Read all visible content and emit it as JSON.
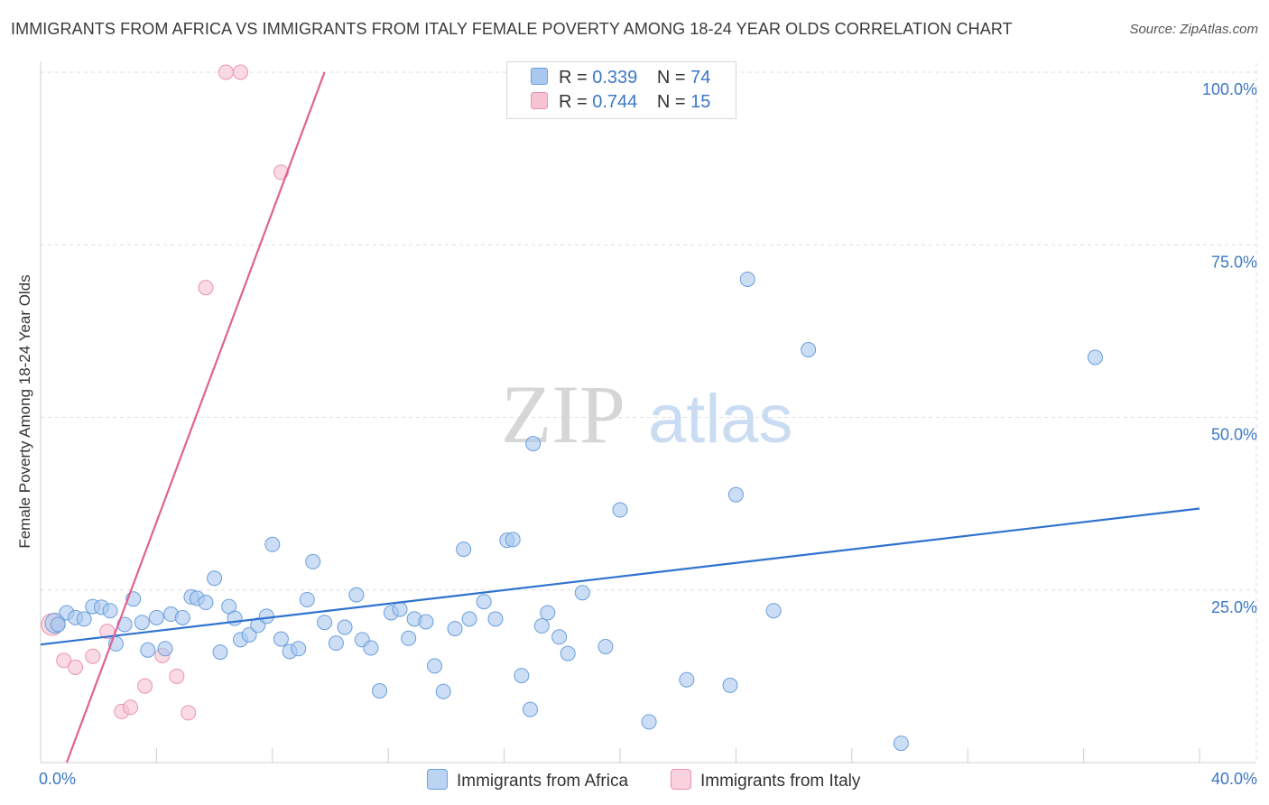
{
  "title": "IMMIGRANTS FROM AFRICA VS IMMIGRANTS FROM ITALY FEMALE POVERTY AMONG 18-24 YEAR OLDS CORRELATION CHART",
  "source": "Source: ZipAtlas.com",
  "watermark": {
    "zip": "ZIP",
    "atlas": "atlas"
  },
  "legend": {
    "africa": {
      "r_label": "R =",
      "r_value": "0.339",
      "n_label": "N =",
      "n_value": "74"
    },
    "italy": {
      "r_label": "R =",
      "r_value": "0.744",
      "n_label": "N =",
      "n_value": "15"
    }
  },
  "colors": {
    "africa_fill": "#a9c8ef",
    "africa_stroke": "#6a9fdc",
    "africa_line": "#2f72cf",
    "italy_fill": "#f7c3d3",
    "italy_stroke": "#ea93b0",
    "italy_line": "#e0628f",
    "axis_text": "#3b78c7",
    "grid": "#dedede"
  },
  "chart_data": {
    "type": "scatter",
    "title": "IMMIGRANTS FROM AFRICA VS IMMIGRANTS FROM ITALY FEMALE POVERTY AMONG 18-24 YEAR OLDS CORRELATION CHART",
    "xlabel": "",
    "ylabel": "Female Poverty Among 18-24 Year Olds",
    "xlim": [
      0,
      40
    ],
    "ylim": [
      0,
      100
    ],
    "x_tick_labels": [
      "0.0%",
      "40.0%"
    ],
    "y_tick_values": [
      25,
      50,
      75,
      100
    ],
    "y_tick_labels": [
      "25.0%",
      "50.0%",
      "75.0%",
      "100.0%"
    ],
    "legend_position": "top-center",
    "series": [
      {
        "name": "Immigrants from Africa",
        "R": 0.339,
        "N": 74,
        "trend": {
          "x": [
            0,
            40
          ],
          "y": [
            17.1,
            36.8
          ]
        },
        "points": [
          [
            0.5,
            20.2
          ],
          [
            0.6,
            20.0
          ],
          [
            0.9,
            21.7
          ],
          [
            1.2,
            21.0
          ],
          [
            1.5,
            20.8
          ],
          [
            1.8,
            22.6
          ],
          [
            2.1,
            22.5
          ],
          [
            2.4,
            22.0
          ],
          [
            2.6,
            17.2
          ],
          [
            2.9,
            20.0
          ],
          [
            3.2,
            23.7
          ],
          [
            3.5,
            20.3
          ],
          [
            3.7,
            16.3
          ],
          [
            4.0,
            21.0
          ],
          [
            4.3,
            16.5
          ],
          [
            4.5,
            21.5
          ],
          [
            4.9,
            21.0
          ],
          [
            5.2,
            24.0
          ],
          [
            5.4,
            23.8
          ],
          [
            5.7,
            23.2
          ],
          [
            6.0,
            26.7
          ],
          [
            6.2,
            16.0
          ],
          [
            6.5,
            22.6
          ],
          [
            6.7,
            20.9
          ],
          [
            6.9,
            17.8
          ],
          [
            7.2,
            18.5
          ],
          [
            7.5,
            19.9
          ],
          [
            7.8,
            21.2
          ],
          [
            8.0,
            31.6
          ],
          [
            8.3,
            17.9
          ],
          [
            8.6,
            16.1
          ],
          [
            8.9,
            16.5
          ],
          [
            9.2,
            23.6
          ],
          [
            9.4,
            29.1
          ],
          [
            9.8,
            20.3
          ],
          [
            10.2,
            17.3
          ],
          [
            10.5,
            19.6
          ],
          [
            10.9,
            24.3
          ],
          [
            11.1,
            17.8
          ],
          [
            11.4,
            16.6
          ],
          [
            11.7,
            10.4
          ],
          [
            12.1,
            21.7
          ],
          [
            12.4,
            22.2
          ],
          [
            12.7,
            18.0
          ],
          [
            12.9,
            20.8
          ],
          [
            13.3,
            20.4
          ],
          [
            13.6,
            14.0
          ],
          [
            13.9,
            10.3
          ],
          [
            14.3,
            19.4
          ],
          [
            14.6,
            30.9
          ],
          [
            14.8,
            20.8
          ],
          [
            15.3,
            23.3
          ],
          [
            15.7,
            20.8
          ],
          [
            16.1,
            32.2
          ],
          [
            16.3,
            32.3
          ],
          [
            16.6,
            12.6
          ],
          [
            16.9,
            7.7
          ],
          [
            17.3,
            19.8
          ],
          [
            17.5,
            21.7
          ],
          [
            17.9,
            18.2
          ],
          [
            18.2,
            15.8
          ],
          [
            17.0,
            46.2
          ],
          [
            18.7,
            24.6
          ],
          [
            20.0,
            36.6
          ],
          [
            19.5,
            16.8
          ],
          [
            21.0,
            5.9
          ],
          [
            22.3,
            12.0
          ],
          [
            23.8,
            11.2
          ],
          [
            24.0,
            38.8
          ],
          [
            24.4,
            70.0
          ],
          [
            25.3,
            22.0
          ],
          [
            26.5,
            59.8
          ],
          [
            29.7,
            2.8
          ],
          [
            36.4,
            58.7
          ]
        ]
      },
      {
        "name": "Immigrants from Italy",
        "R": 0.744,
        "N": 15,
        "trend": {
          "x": [
            0.9,
            9.8
          ],
          "y": [
            0,
            100
          ]
        },
        "points": [
          [
            0.4,
            20.0
          ],
          [
            0.8,
            14.8
          ],
          [
            1.2,
            13.8
          ],
          [
            1.8,
            15.4
          ],
          [
            2.3,
            19.0
          ],
          [
            2.8,
            7.4
          ],
          [
            3.1,
            8.0
          ],
          [
            3.6,
            11.1
          ],
          [
            4.2,
            15.5
          ],
          [
            4.7,
            12.5
          ],
          [
            5.1,
            7.2
          ],
          [
            5.7,
            68.8
          ],
          [
            6.4,
            100.0
          ],
          [
            6.9,
            100.0
          ],
          [
            8.3,
            85.5
          ]
        ]
      }
    ]
  }
}
